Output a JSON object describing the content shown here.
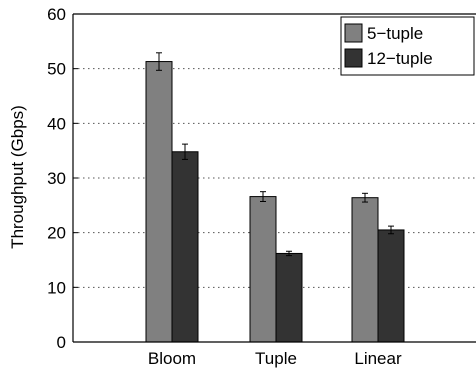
{
  "chart_data": {
    "type": "bar",
    "categories": [
      "Bloom",
      "Tuple",
      "Linear"
    ],
    "series": [
      {
        "name": "5−tuple",
        "values": [
          51.3,
          26.6,
          26.4
        ],
        "errors": [
          1.6,
          0.9,
          0.8
        ],
        "color": "#808080"
      },
      {
        "name": "12−tuple",
        "values": [
          34.8,
          16.2,
          20.5
        ],
        "errors": [
          1.4,
          0.4,
          0.7
        ],
        "color": "#333333"
      }
    ],
    "ylabel": "Throughput (Gbps)",
    "xlabel": "",
    "ylim": [
      0,
      60
    ],
    "yticks": [
      0,
      10,
      20,
      30,
      40,
      50,
      60
    ],
    "grid": "horizontal dotted",
    "legend_position": "top-right"
  }
}
